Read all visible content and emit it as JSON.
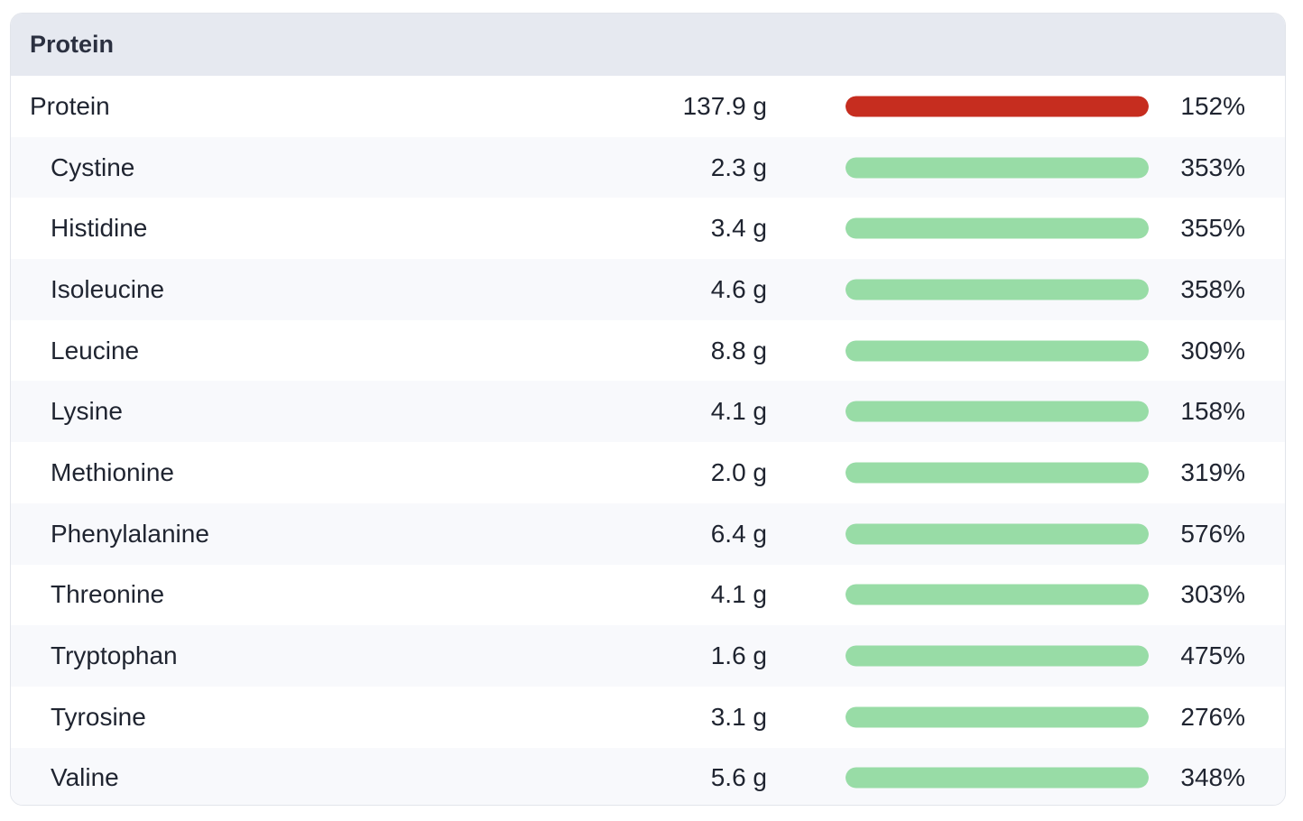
{
  "panel": {
    "title": "Protein"
  },
  "colors": {
    "over_limit": "#c62d1f",
    "good": "#98dca6",
    "track": "#e9ecef"
  },
  "rows": [
    {
      "name": "Protein",
      "amount": "137.9 g",
      "percent": "152%",
      "fill": 1.0,
      "status": "over_limit",
      "level": "main"
    },
    {
      "name": "Cystine",
      "amount": "2.3 g",
      "percent": "353%",
      "fill": 1.0,
      "status": "good",
      "level": "sub"
    },
    {
      "name": "Histidine",
      "amount": "3.4 g",
      "percent": "355%",
      "fill": 1.0,
      "status": "good",
      "level": "sub"
    },
    {
      "name": "Isoleucine",
      "amount": "4.6 g",
      "percent": "358%",
      "fill": 1.0,
      "status": "good",
      "level": "sub"
    },
    {
      "name": "Leucine",
      "amount": "8.8 g",
      "percent": "309%",
      "fill": 1.0,
      "status": "good",
      "level": "sub"
    },
    {
      "name": "Lysine",
      "amount": "4.1 g",
      "percent": "158%",
      "fill": 1.0,
      "status": "good",
      "level": "sub"
    },
    {
      "name": "Methionine",
      "amount": "2.0 g",
      "percent": "319%",
      "fill": 1.0,
      "status": "good",
      "level": "sub"
    },
    {
      "name": "Phenylalanine",
      "amount": "6.4 g",
      "percent": "576%",
      "fill": 1.0,
      "status": "good",
      "level": "sub"
    },
    {
      "name": "Threonine",
      "amount": "4.1 g",
      "percent": "303%",
      "fill": 1.0,
      "status": "good",
      "level": "sub"
    },
    {
      "name": "Tryptophan",
      "amount": "1.6 g",
      "percent": "475%",
      "fill": 1.0,
      "status": "good",
      "level": "sub"
    },
    {
      "name": "Tyrosine",
      "amount": "3.1 g",
      "percent": "276%",
      "fill": 1.0,
      "status": "good",
      "level": "sub"
    },
    {
      "name": "Valine",
      "amount": "5.6 g",
      "percent": "348%",
      "fill": 1.0,
      "status": "good",
      "level": "sub"
    }
  ]
}
